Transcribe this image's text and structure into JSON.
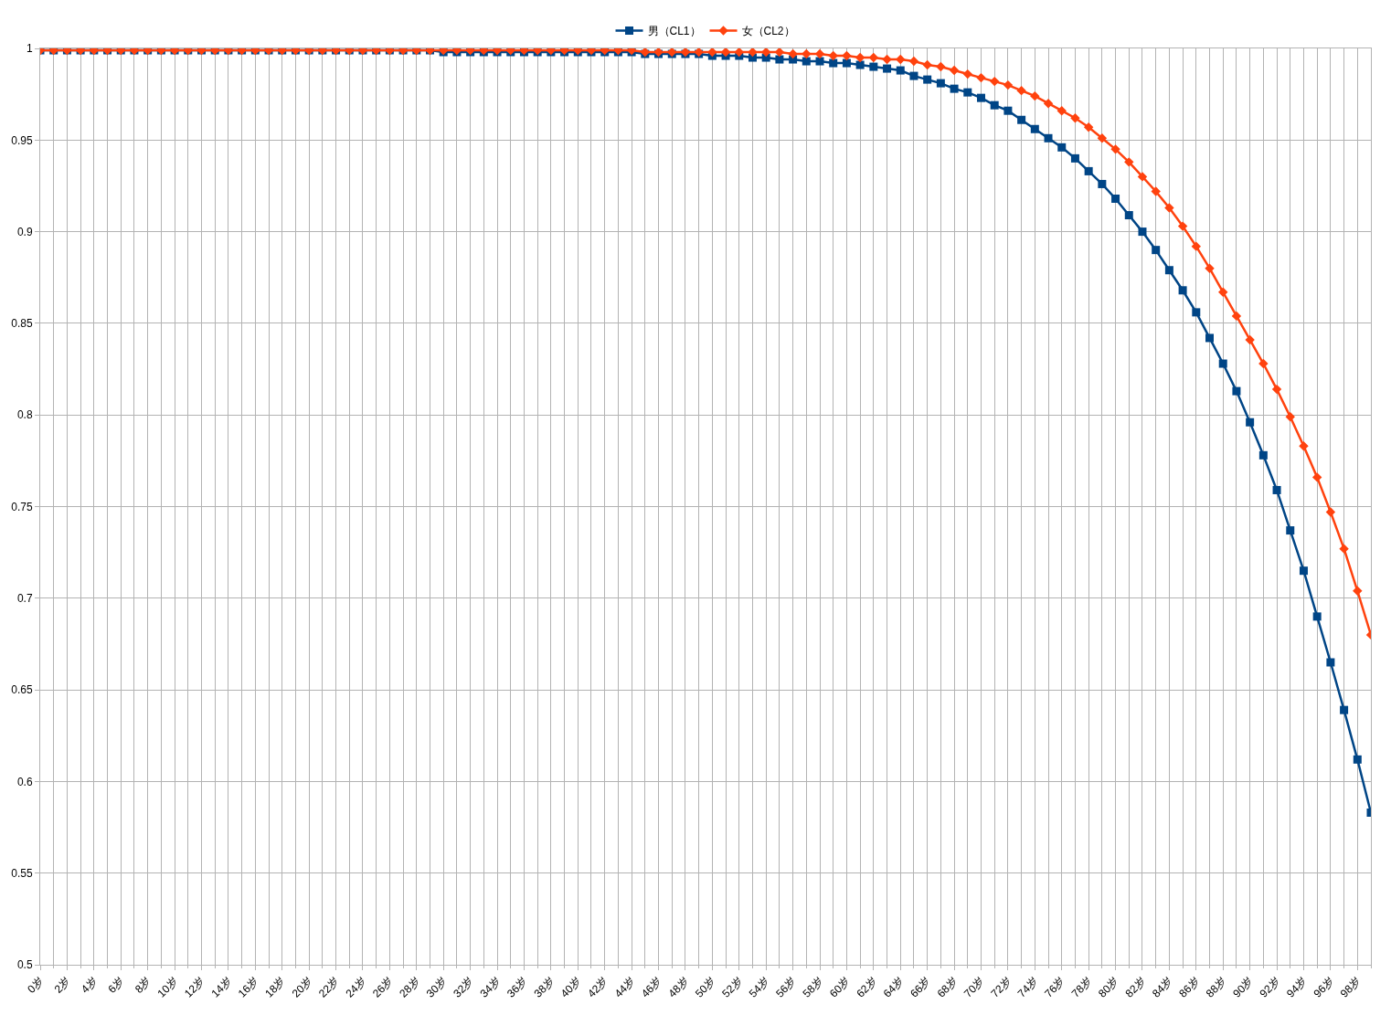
{
  "chart_data": {
    "type": "line",
    "categories": [
      "0岁",
      null,
      "2岁",
      null,
      "4岁",
      null,
      "6岁",
      null,
      "8岁",
      null,
      "10岁",
      null,
      "12岁",
      null,
      "14岁",
      null,
      "16岁",
      null,
      "18岁",
      null,
      "20岁",
      null,
      "22岁",
      null,
      "24岁",
      null,
      "26岁",
      null,
      "28岁",
      null,
      "30岁",
      null,
      "32岁",
      null,
      "34岁",
      null,
      "36岁",
      null,
      "38岁",
      null,
      "40岁",
      null,
      "42岁",
      null,
      "44岁",
      null,
      "46岁",
      null,
      "48岁",
      null,
      "50岁",
      null,
      "52岁",
      null,
      "54岁",
      null,
      "56岁",
      null,
      "58岁",
      null,
      "60岁",
      null,
      "62岁",
      null,
      "64岁",
      null,
      "66岁",
      null,
      "68岁",
      null,
      "70岁",
      null,
      "72岁",
      null,
      "74岁",
      null,
      "76岁",
      null,
      "78岁",
      null,
      "80岁",
      null,
      "82岁",
      null,
      "84岁",
      null,
      "86岁",
      null,
      "88岁",
      null,
      "90岁",
      null,
      "92岁",
      null,
      "94岁",
      null,
      "96岁",
      null,
      "98岁",
      null
    ],
    "series": [
      {
        "name": "男（CL1）",
        "color": "#004586",
        "marker": "square",
        "values": [
          0.999,
          0.999,
          0.999,
          0.999,
          0.999,
          0.999,
          0.999,
          0.999,
          0.999,
          0.999,
          0.999,
          0.999,
          0.999,
          0.999,
          0.999,
          0.999,
          0.999,
          0.999,
          0.999,
          0.999,
          0.999,
          0.999,
          0.999,
          0.999,
          0.999,
          0.999,
          0.999,
          0.999,
          0.999,
          0.999,
          0.998,
          0.998,
          0.998,
          0.998,
          0.998,
          0.998,
          0.998,
          0.998,
          0.998,
          0.998,
          0.998,
          0.998,
          0.998,
          0.998,
          0.998,
          0.997,
          0.997,
          0.997,
          0.997,
          0.997,
          0.996,
          0.996,
          0.996,
          0.995,
          0.995,
          0.994,
          0.994,
          0.993,
          0.993,
          0.992,
          0.992,
          0.991,
          0.99,
          0.989,
          0.988,
          0.985,
          0.983,
          0.981,
          0.978,
          0.976,
          0.973,
          0.969,
          0.966,
          0.961,
          0.956,
          0.951,
          0.946,
          0.94,
          0.933,
          0.926,
          0.918,
          0.909,
          0.9,
          0.89,
          0.879,
          0.868,
          0.856,
          0.842,
          0.828,
          0.813,
          0.796,
          0.778,
          0.759,
          0.737,
          0.715,
          0.69,
          0.665,
          0.639,
          0.612,
          0.583
        ]
      },
      {
        "name": "女（CL2）",
        "color": "#ff420e",
        "marker": "diamond",
        "values": [
          0.999,
          0.999,
          0.999,
          0.999,
          0.999,
          0.999,
          0.999,
          0.999,
          0.999,
          0.999,
          0.999,
          0.999,
          0.999,
          0.999,
          0.999,
          0.999,
          0.999,
          0.999,
          0.999,
          0.999,
          0.999,
          0.999,
          0.999,
          0.999,
          0.999,
          0.999,
          0.999,
          0.999,
          0.999,
          0.999,
          0.999,
          0.999,
          0.999,
          0.999,
          0.999,
          0.999,
          0.999,
          0.999,
          0.999,
          0.999,
          0.999,
          0.999,
          0.999,
          0.999,
          0.999,
          0.998,
          0.998,
          0.998,
          0.998,
          0.998,
          0.998,
          0.998,
          0.998,
          0.998,
          0.998,
          0.998,
          0.997,
          0.997,
          0.997,
          0.996,
          0.996,
          0.995,
          0.995,
          0.994,
          0.994,
          0.993,
          0.991,
          0.99,
          0.988,
          0.986,
          0.984,
          0.982,
          0.98,
          0.977,
          0.974,
          0.97,
          0.966,
          0.962,
          0.957,
          0.951,
          0.945,
          0.938,
          0.93,
          0.922,
          0.913,
          0.903,
          0.892,
          0.88,
          0.867,
          0.854,
          0.841,
          0.828,
          0.814,
          0.799,
          0.783,
          0.766,
          0.747,
          0.727,
          0.704,
          0.68
        ]
      }
    ],
    "ylim": [
      0.5,
      1
    ],
    "yticks": [
      0.5,
      0.55,
      0.6,
      0.65,
      0.7,
      0.75,
      0.8,
      0.85,
      0.9,
      0.95,
      1
    ],
    "grid": true,
    "legend": "top",
    "line_style": "solid"
  }
}
